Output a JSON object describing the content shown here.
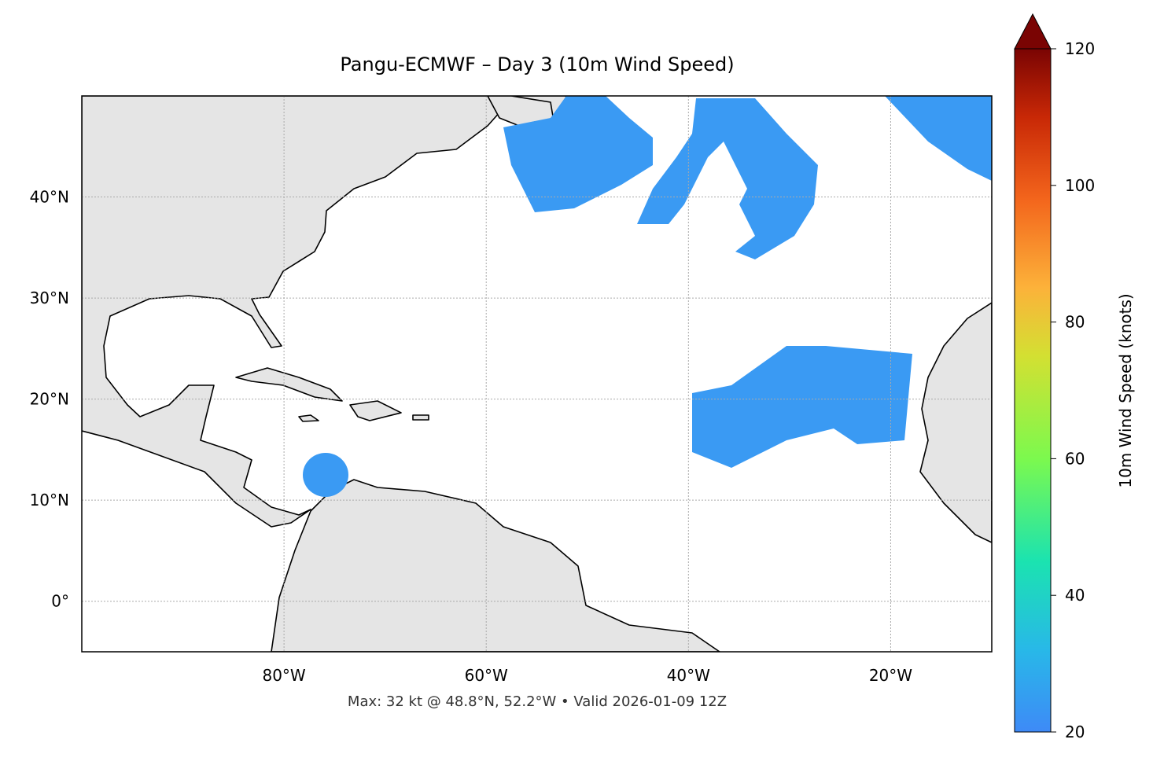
{
  "chart_data": {
    "type": "map",
    "title": "Pangu-ECMWF – Day 3 (10m Wind Speed)",
    "footer": "Max: 32 kt @ 48.8°N, 52.2°W • Valid 2026-01-09 12Z",
    "xlim": [
      -100,
      -10
    ],
    "ylim": [
      -5,
      50
    ],
    "xticks": [
      {
        "value": -80,
        "label": "80°W"
      },
      {
        "value": -60,
        "label": "60°W"
      },
      {
        "value": -40,
        "label": "40°W"
      },
      {
        "value": -20,
        "label": "20°W"
      }
    ],
    "yticks": [
      {
        "value": 0,
        "label": "0°"
      },
      {
        "value": 10,
        "label": "10°N"
      },
      {
        "value": 20,
        "label": "20°N"
      },
      {
        "value": 30,
        "label": "30°N"
      },
      {
        "value": 40,
        "label": "40°N"
      }
    ],
    "grid": true,
    "colorbar": {
      "label": "10m Wind Speed (knots)",
      "lim": [
        20,
        120
      ],
      "ticks": [
        20,
        40,
        60,
        80,
        100,
        120
      ]
    }
  }
}
